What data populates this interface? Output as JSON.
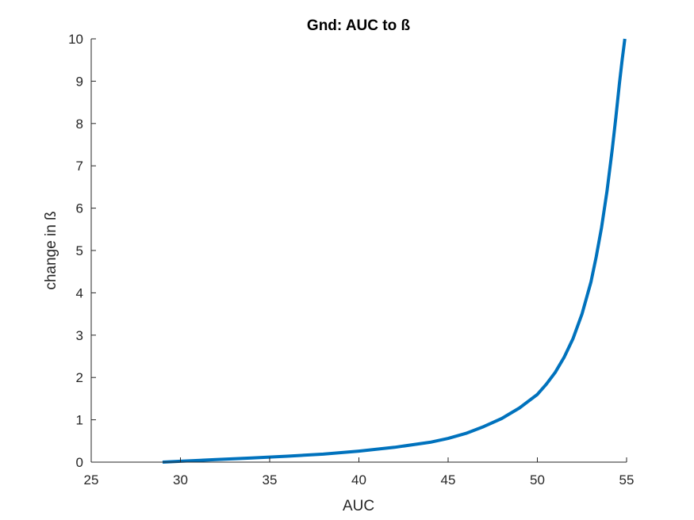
{
  "chart_data": {
    "type": "line",
    "title": "Gnd: AUC to ß",
    "xlabel": "AUC",
    "ylabel": "change in ß",
    "xlim": [
      25,
      55
    ],
    "ylim": [
      0,
      10
    ],
    "xticks": [
      "25",
      "30",
      "35",
      "40",
      "45",
      "50",
      "55"
    ],
    "yticks": [
      "0",
      "1",
      "2",
      "3",
      "4",
      "5",
      "6",
      "7",
      "8",
      "9",
      "10"
    ],
    "grid": false,
    "legend": "none",
    "series": [
      {
        "color": "#0072BD",
        "x": [
          29,
          30,
          32,
          34,
          36,
          38,
          40,
          42,
          44,
          45,
          46,
          47,
          48,
          49,
          50,
          50.5,
          51,
          51.5,
          52,
          52.5,
          53,
          53.3,
          53.6,
          53.9,
          54.2,
          54.4,
          54.6,
          54.75,
          54.9
        ],
        "y": [
          0.0,
          0.02,
          0.06,
          0.1,
          0.14,
          0.19,
          0.26,
          0.35,
          0.47,
          0.56,
          0.68,
          0.84,
          1.03,
          1.28,
          1.6,
          1.84,
          2.12,
          2.48,
          2.92,
          3.5,
          4.25,
          4.85,
          5.55,
          6.4,
          7.4,
          8.15,
          8.95,
          9.5,
          10.0
        ]
      }
    ]
  }
}
